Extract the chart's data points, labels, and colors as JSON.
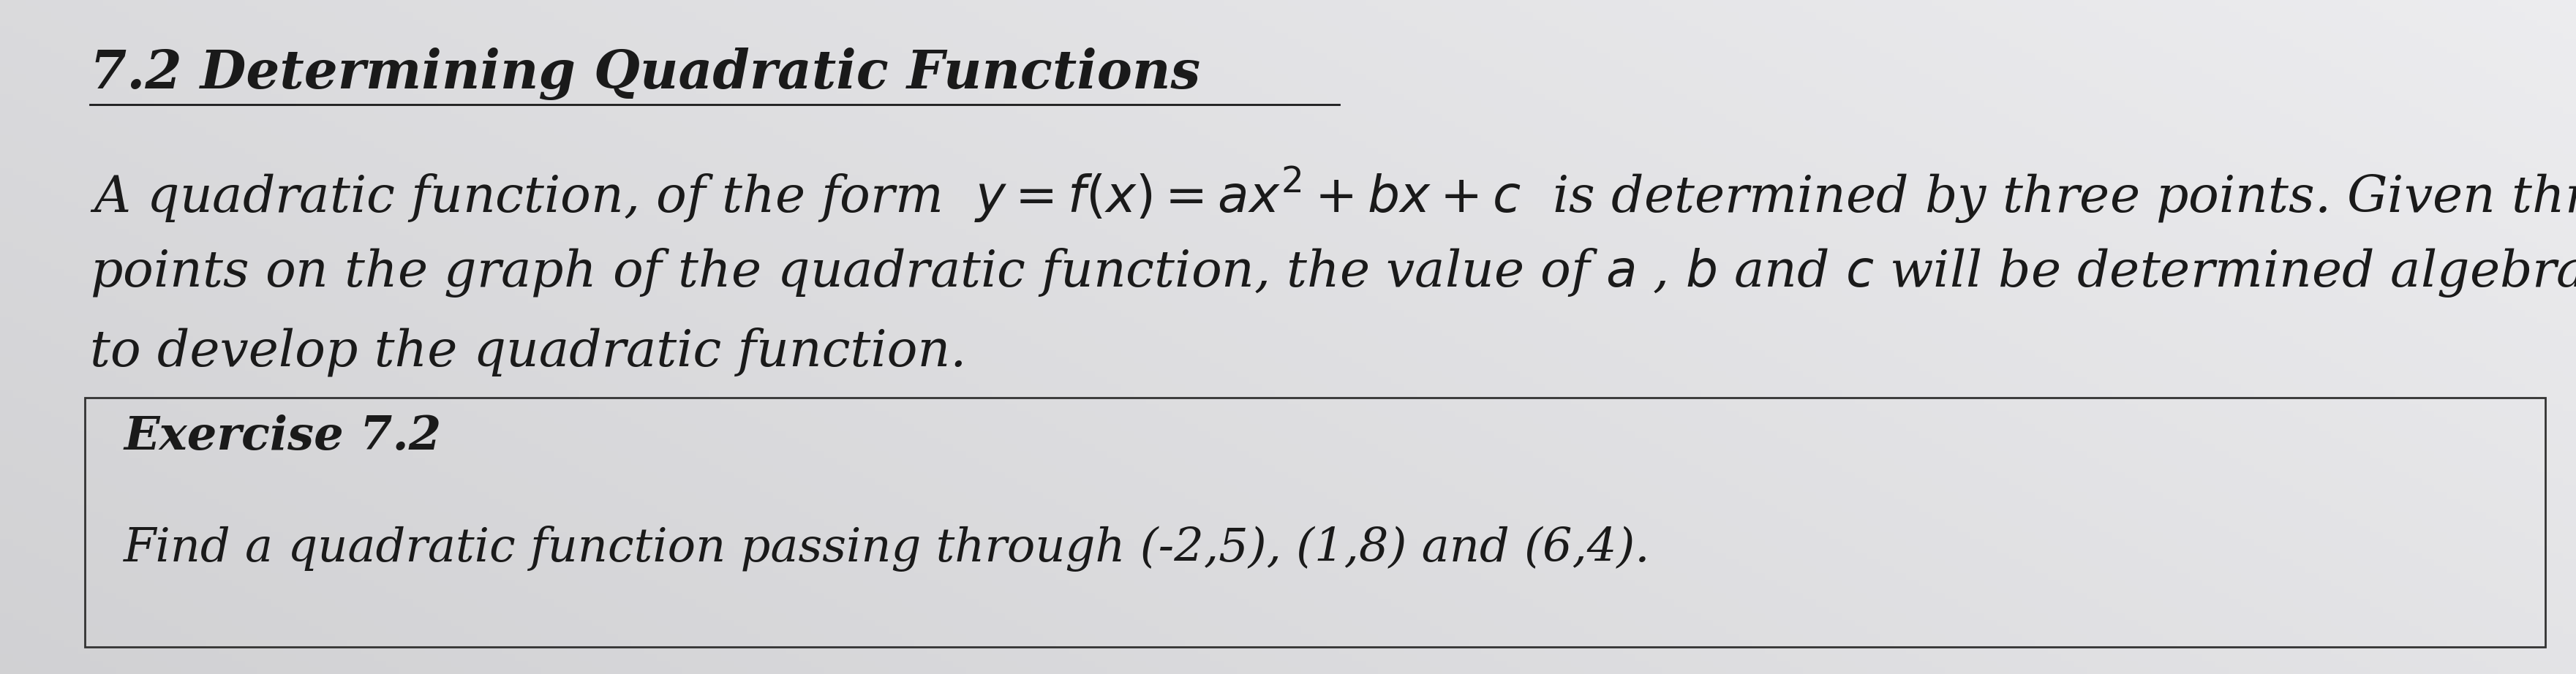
{
  "bg_color": "#c8c8cc",
  "bg_center_color": "#e8e8ec",
  "title": "7.2 Determining Quadratic Functions",
  "para_line1": "A quadratic function, of the form  $y = f(x) = ax^2 + bx + c$  is determined by three points. Given three",
  "para_line2": "points on the graph of the quadratic function, the value of $a$ , $b$ and $c$ will be determined algebraically",
  "para_line3": "to develop the quadratic function.",
  "exercise_label": "Exercise 7.2",
  "exercise_text": "Find a quadratic function passing through (-2,5), (1,8) and (6,4).",
  "title_fontsize": 52,
  "para_fontsize": 50,
  "exercise_label_fontsize": 46,
  "exercise_text_fontsize": 46,
  "text_color": "#1a1a1a",
  "box_color": "#333333"
}
